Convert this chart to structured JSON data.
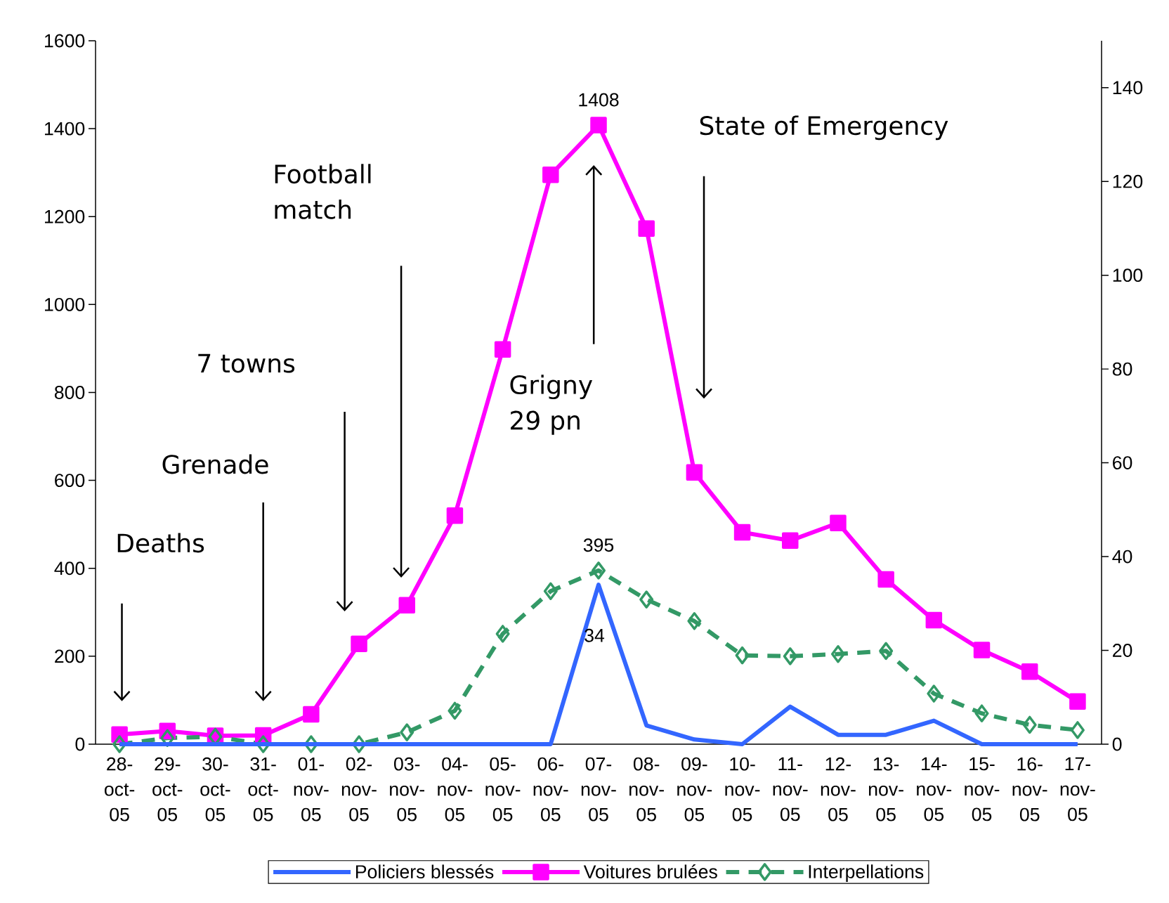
{
  "chart_data": {
    "type": "line",
    "categories": [
      "28-oct-05",
      "29-oct-05",
      "30-oct-05",
      "31-oct-05",
      "01-nov-05",
      "02-nov-05",
      "03-nov-05",
      "04-nov-05",
      "05-nov-05",
      "06-nov-05",
      "07-nov-05",
      "08-nov-05",
      "09-nov-05",
      "10-nov-05",
      "11-nov-05",
      "12-nov-05",
      "13-nov-05",
      "14-nov-05",
      "15-nov-05",
      "16-nov-05",
      "17-nov-05"
    ],
    "series": [
      {
        "name": "Policiers blessés",
        "color": "#3366ff",
        "axis": "y2",
        "marker": "none",
        "line_style": "solid",
        "values": [
          0,
          0,
          0,
          0,
          0,
          0,
          0,
          0,
          0,
          0,
          34,
          4,
          1,
          0,
          8,
          2,
          2,
          5,
          0,
          0,
          0
        ],
        "value_labels": [
          null,
          null,
          null,
          null,
          null,
          null,
          null,
          null,
          null,
          null,
          "34",
          null,
          null,
          null,
          null,
          null,
          null,
          null,
          null,
          null,
          null
        ]
      },
      {
        "name": "Voitures brulées",
        "color": "#ff00ff",
        "marker": "square",
        "line_style": "solid",
        "values": [
          22,
          30,
          19,
          20,
          68,
          228,
          316,
          520,
          898,
          1295,
          1408,
          1173,
          618,
          482,
          463,
          503,
          375,
          282,
          214,
          165,
          97
        ],
        "value_labels": [
          null,
          null,
          null,
          null,
          null,
          null,
          null,
          null,
          null,
          null,
          "1408",
          null,
          null,
          null,
          null,
          null,
          null,
          null,
          null,
          null,
          null
        ]
      },
      {
        "name": "Interpellations",
        "color": "#339966",
        "marker": "diamond",
        "line_style": "dashed",
        "values": [
          0,
          14,
          17,
          0,
          0,
          0,
          27,
          76,
          251,
          348,
          395,
          329,
          280,
          202,
          200,
          205,
          212,
          115,
          70,
          44,
          32
        ],
        "value_labels": [
          null,
          null,
          null,
          null,
          null,
          null,
          null,
          null,
          null,
          null,
          "395",
          null,
          null,
          null,
          null,
          null,
          null,
          null,
          null,
          null,
          null
        ]
      }
    ],
    "ylim": [
      0,
      1600
    ],
    "yticks": [
      0,
      200,
      400,
      600,
      800,
      1000,
      1200,
      1400,
      1600
    ],
    "y2lim": [
      0,
      150
    ],
    "y2ticks": [
      0,
      20,
      40,
      60,
      80,
      100,
      120,
      140
    ],
    "grid": false,
    "legend": "bottom",
    "annotations": [
      "Deaths",
      "Grenade",
      "7 towns",
      "Football match",
      "Grigny 29 pn",
      "State of Emergency"
    ]
  }
}
